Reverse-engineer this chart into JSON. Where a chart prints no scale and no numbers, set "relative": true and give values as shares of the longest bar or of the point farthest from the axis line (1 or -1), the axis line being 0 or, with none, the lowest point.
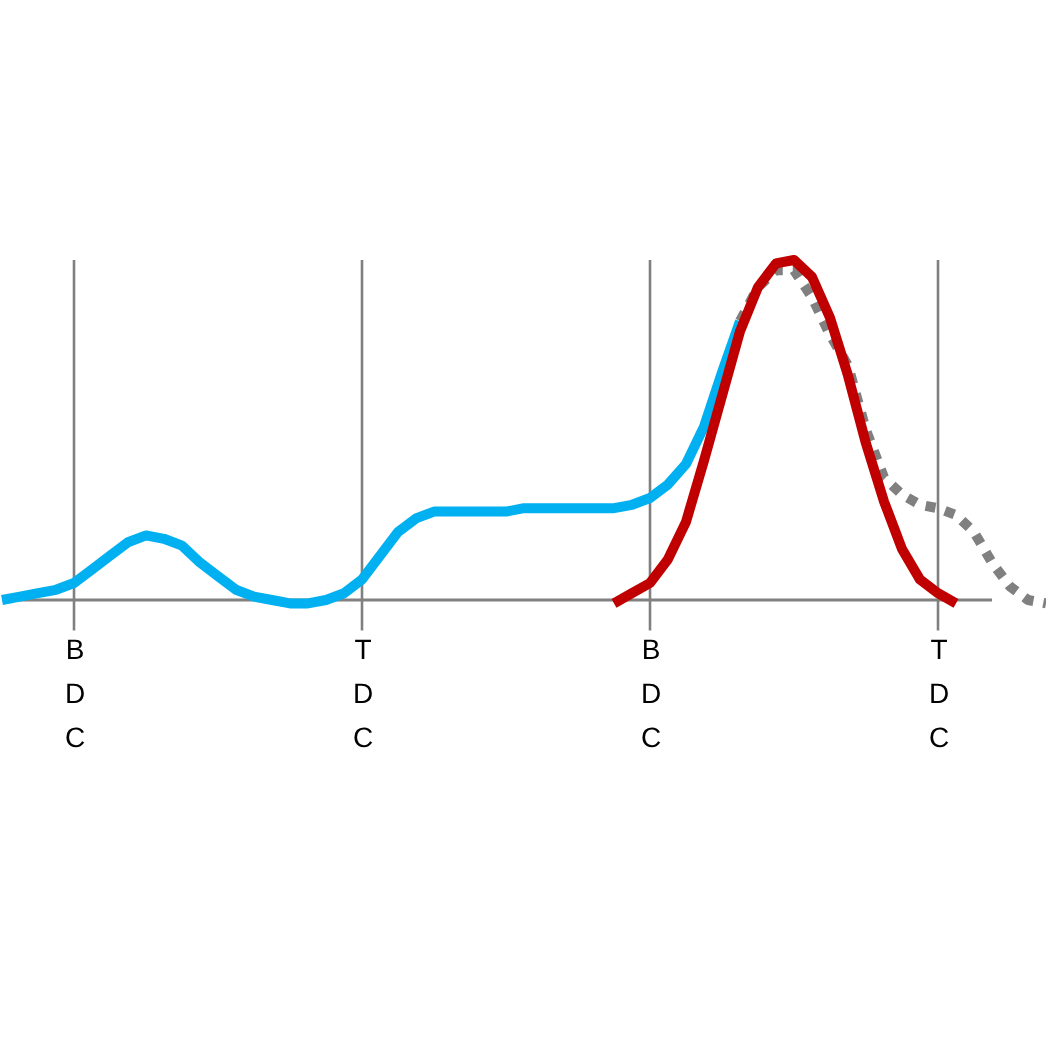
{
  "chart_data": {
    "type": "line",
    "relative": true,
    "grid": "x",
    "marker": "none",
    "categories": [
      null,
      null,
      null,
      null,
      "BDC",
      null,
      null,
      null,
      null,
      null,
      null,
      null,
      null,
      null,
      null,
      null,
      null,
      null,
      null,
      null,
      "TDC",
      null,
      null,
      null,
      null,
      null,
      null,
      null,
      null,
      null,
      null,
      null,
      null,
      null,
      null,
      null,
      "BDC",
      null,
      null,
      null,
      null,
      null,
      null,
      null,
      null,
      null,
      null,
      null,
      null,
      null,
      null,
      null,
      "TDC",
      null,
      null,
      null,
      null,
      null,
      null
    ],
    "series": [
      {
        "color": "#00b0f0",
        "line_style": "solid",
        "values": [
          0,
          0.01,
          0.02,
          0.03,
          0.05,
          0.09,
          0.13,
          0.17,
          0.19,
          0.18,
          0.16,
          0.11,
          0.07,
          0.03,
          0.01,
          0,
          -0.01,
          -0.01,
          0,
          0.02,
          0.06,
          0.13,
          0.2,
          0.24,
          0.26,
          0.26,
          0.26,
          0.26,
          0.26,
          0.27,
          0.27,
          0.27,
          0.27,
          0.27,
          0.27,
          0.28,
          0.3,
          0.34,
          0.4,
          0.51,
          0.67,
          0.82,
          null,
          null,
          null,
          null,
          null,
          null,
          null,
          null,
          null,
          null,
          null,
          null,
          null,
          null,
          null,
          null,
          null
        ]
      },
      {
        "color": "#808080",
        "line_style": "dotted",
        "values": [
          null,
          null,
          null,
          null,
          null,
          null,
          null,
          null,
          null,
          null,
          null,
          null,
          null,
          null,
          null,
          null,
          null,
          null,
          null,
          null,
          null,
          null,
          null,
          null,
          null,
          null,
          null,
          null,
          null,
          null,
          null,
          null,
          null,
          null,
          null,
          null,
          null,
          null,
          null,
          null,
          null,
          0.82,
          0.92,
          0.97,
          0.97,
          0.89,
          0.78,
          0.69,
          0.5,
          0.36,
          0.31,
          0.28,
          0.27,
          0.25,
          0.2,
          0.11,
          0.04,
          0,
          -0.01
        ]
      },
      {
        "color": "#c00000",
        "line_style": "solid",
        "values": [
          null,
          null,
          null,
          null,
          null,
          null,
          null,
          null,
          null,
          null,
          null,
          null,
          null,
          null,
          null,
          null,
          null,
          null,
          null,
          null,
          null,
          null,
          null,
          null,
          null,
          null,
          null,
          null,
          null,
          null,
          null,
          null,
          null,
          null,
          -0.01,
          0.02,
          0.05,
          0.12,
          0.23,
          0.41,
          0.6,
          0.79,
          0.92,
          0.99,
          1.0,
          0.95,
          0.83,
          0.66,
          0.46,
          0.29,
          0.15,
          0.06,
          0.02,
          -0.01,
          null,
          null,
          null,
          null,
          null
        ]
      }
    ]
  }
}
